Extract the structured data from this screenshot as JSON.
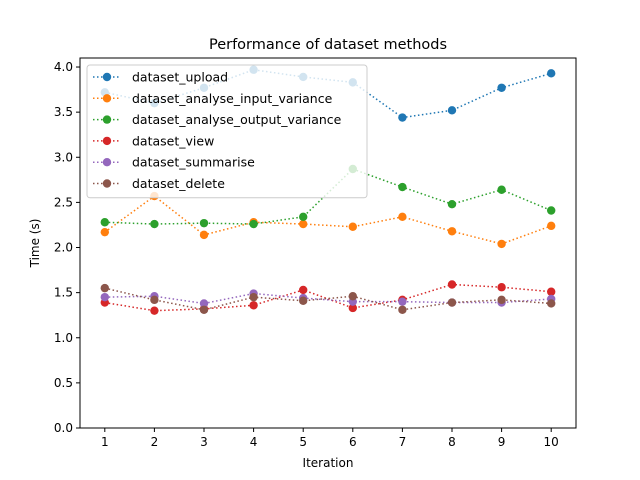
{
  "chart_data": {
    "type": "line",
    "title": "Performance of dataset methods",
    "xlabel": "Iteration",
    "ylabel": "Time (s)",
    "x": [
      1,
      2,
      3,
      4,
      5,
      6,
      7,
      8,
      9,
      10
    ],
    "xlim": [
      0.5,
      10.5
    ],
    "ylim": [
      0.0,
      4.1
    ],
    "xticks": [
      "1",
      "2",
      "3",
      "4",
      "5",
      "6",
      "7",
      "8",
      "9",
      "10"
    ],
    "yticks": [
      "0.0",
      "0.5",
      "1.0",
      "1.5",
      "2.0",
      "2.5",
      "3.0",
      "3.5",
      "4.0"
    ],
    "grid": false,
    "line_style": "dotted",
    "marker": "circle",
    "legend_position": "upper-left",
    "series": [
      {
        "name": "dataset_upload",
        "color": "#1f77b4",
        "values": [
          3.72,
          3.6,
          3.77,
          3.97,
          3.89,
          3.83,
          3.44,
          3.52,
          3.77,
          3.93
        ]
      },
      {
        "name": "dataset_analyse_input_variance",
        "color": "#ff7f0e",
        "values": [
          2.17,
          2.57,
          2.14,
          2.28,
          2.26,
          2.23,
          2.34,
          2.18,
          2.04,
          2.24
        ]
      },
      {
        "name": "dataset_analyse_output_variance",
        "color": "#2ca02c",
        "values": [
          2.28,
          2.26,
          2.27,
          2.26,
          2.34,
          2.87,
          2.67,
          2.48,
          2.64,
          2.41
        ]
      },
      {
        "name": "dataset_view",
        "color": "#d62728",
        "values": [
          1.39,
          1.3,
          1.32,
          1.36,
          1.53,
          1.33,
          1.42,
          1.59,
          1.56,
          1.51
        ]
      },
      {
        "name": "dataset_summarise",
        "color": "#9467bd",
        "values": [
          1.45,
          1.46,
          1.38,
          1.49,
          1.44,
          1.4,
          1.4,
          1.39,
          1.39,
          1.43
        ]
      },
      {
        "name": "dataset_delete",
        "color": "#8c564b",
        "values": [
          1.55,
          1.42,
          1.31,
          1.45,
          1.41,
          1.46,
          1.31,
          1.39,
          1.42,
          1.38
        ]
      }
    ]
  }
}
